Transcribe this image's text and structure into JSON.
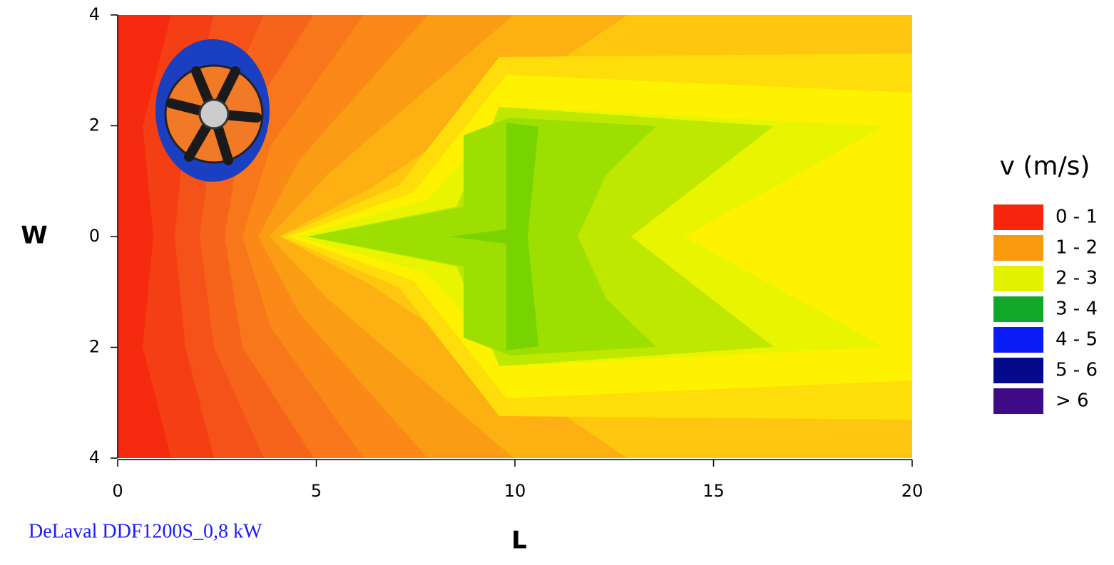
{
  "chart_data": {
    "type": "contour",
    "xlabel": "L",
    "ylabel": "W",
    "xlim": [
      0,
      20
    ],
    "ylim": [
      -4,
      4
    ],
    "xticks": [
      0,
      5,
      10,
      15,
      20
    ],
    "yticks": [
      {
        "value": -4,
        "label": "4"
      },
      {
        "value": -2,
        "label": "2"
      },
      0,
      {
        "value": 2,
        "label": "2"
      },
      {
        "value": 4,
        "label": "4"
      }
    ],
    "legend": {
      "title": "v (m/s)",
      "position": "right",
      "entries": [
        {
          "label": "0 - 1",
          "color": "#f5260c"
        },
        {
          "label": "1 - 2",
          "color": "#fa9a0f"
        },
        {
          "label": "2 - 3",
          "color": "#e3f200"
        },
        {
          "label": "3 - 4",
          "color": "#11a82a"
        },
        {
          "label": "4 - 5",
          "color": "#0a1cf5"
        },
        {
          "label": "5 - 6",
          "color": "#050a8a"
        },
        {
          "label": "> 6",
          "color": "#3f0a85"
        }
      ]
    },
    "annotation": "DeLaval DDF1200S_0,8 kW"
  }
}
